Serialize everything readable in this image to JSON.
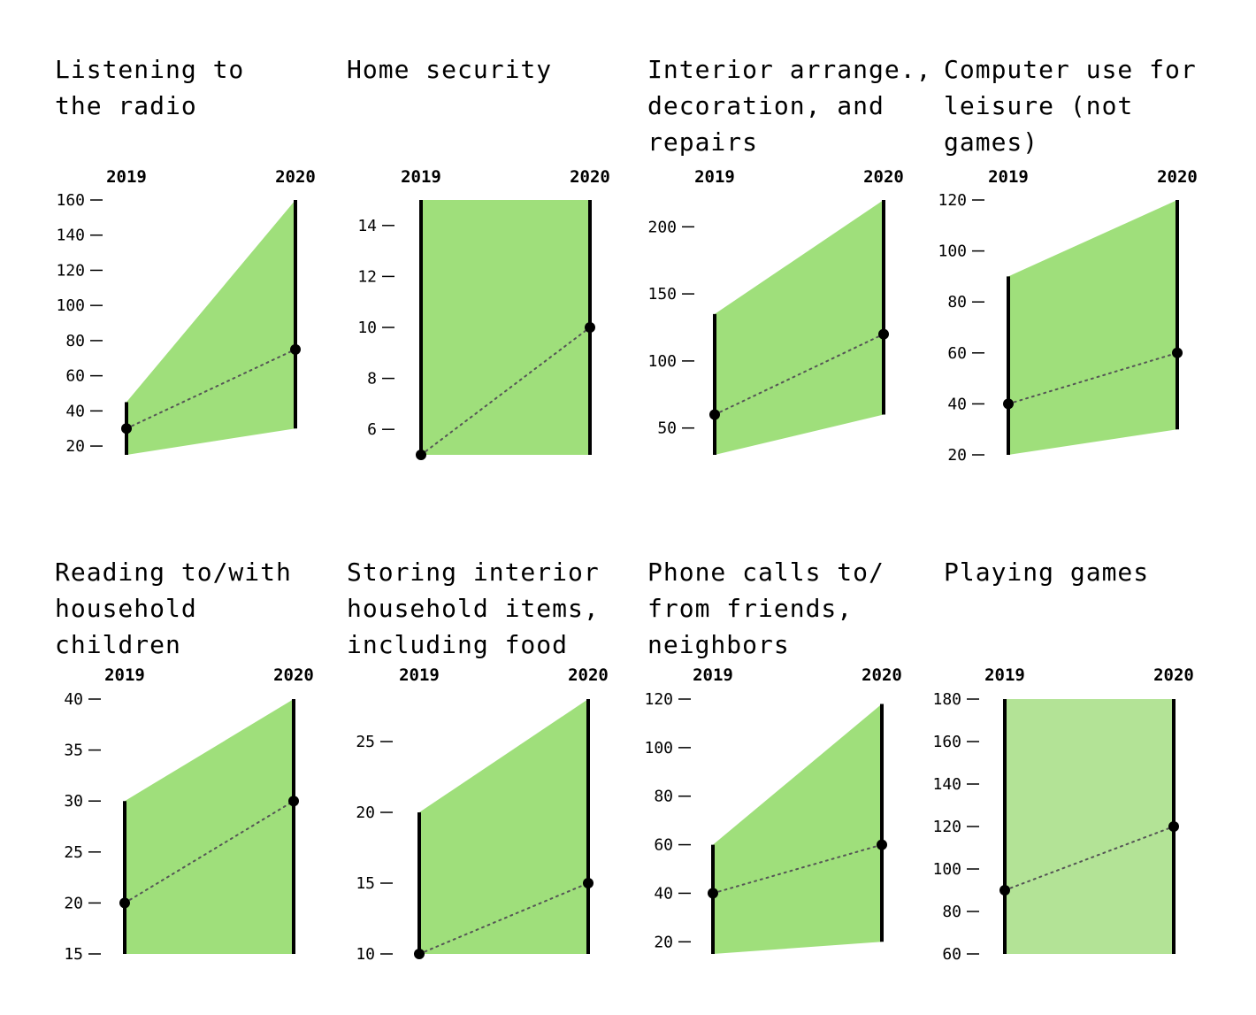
{
  "chart_data": [
    {
      "type": "range-slope",
      "title": "Listening to\nthe radio",
      "x": [
        "2019",
        "2020"
      ],
      "range_2019": [
        15,
        45
      ],
      "range_2020": [
        30,
        160
      ],
      "median": [
        30,
        75
      ],
      "yticks": [
        20,
        40,
        60,
        80,
        100,
        120,
        140,
        160
      ],
      "ylim": [
        15,
        160
      ],
      "fill": "#9fdf7b"
    },
    {
      "type": "range-slope",
      "title": "Home security",
      "x": [
        "2019",
        "2020"
      ],
      "range_2019": [
        5,
        15
      ],
      "range_2020": [
        5,
        15
      ],
      "median": [
        5,
        10
      ],
      "yticks": [
        6,
        8,
        10,
        12,
        14
      ],
      "ylim": [
        5,
        15
      ],
      "fill": "#9fdf7b"
    },
    {
      "type": "range-slope",
      "title": "Interior arrange.,\ndecoration, and\nrepairs",
      "x": [
        "2019",
        "2020"
      ],
      "range_2019": [
        30,
        135
      ],
      "range_2020": [
        60,
        220
      ],
      "median": [
        60,
        120
      ],
      "yticks": [
        50,
        100,
        150,
        200
      ],
      "ylim": [
        30,
        220
      ],
      "fill": "#9fdf7b"
    },
    {
      "type": "range-slope",
      "title": "Computer use for\nleisure (not\ngames)",
      "x": [
        "2019",
        "2020"
      ],
      "range_2019": [
        20,
        90
      ],
      "range_2020": [
        30,
        120
      ],
      "median": [
        40,
        60
      ],
      "yticks": [
        20,
        40,
        60,
        80,
        100,
        120
      ],
      "ylim": [
        20,
        120
      ],
      "fill": "#9fdf7b"
    },
    {
      "type": "range-slope",
      "title": "Reading to/with\nhousehold\nchildren",
      "x": [
        "2019",
        "2020"
      ],
      "range_2019": [
        15,
        30
      ],
      "range_2020": [
        15,
        40
      ],
      "median": [
        20,
        30
      ],
      "yticks": [
        15,
        20,
        25,
        30,
        35,
        40
      ],
      "ylim": [
        15,
        40
      ],
      "fill": "#9fdf7b"
    },
    {
      "type": "range-slope",
      "title": "Storing interior\nhousehold items,\nincluding food",
      "x": [
        "2019",
        "2020"
      ],
      "range_2019": [
        10,
        20
      ],
      "range_2020": [
        10,
        28
      ],
      "median": [
        10,
        15
      ],
      "yticks": [
        10,
        15,
        20,
        25
      ],
      "ylim": [
        10,
        28
      ],
      "fill": "#9fdf7b"
    },
    {
      "type": "range-slope",
      "title": "Phone calls to/\nfrom friends,\nneighbors",
      "x": [
        "2019",
        "2020"
      ],
      "range_2019": [
        15,
        60
      ],
      "range_2020": [
        20,
        118
      ],
      "median": [
        40,
        60
      ],
      "yticks": [
        20,
        40,
        60,
        80,
        100,
        120
      ],
      "ylim": [
        15,
        120
      ],
      "fill": "#9fdf7b"
    },
    {
      "type": "range-slope",
      "title": "Playing games",
      "x": [
        "2019",
        "2020"
      ],
      "range_2019": [
        60,
        180
      ],
      "range_2020": [
        60,
        180
      ],
      "median": [
        90,
        120
      ],
      "yticks": [
        60,
        80,
        100,
        120,
        140,
        160,
        180
      ],
      "ylim": [
        60,
        180
      ],
      "fill": "#b3e396"
    }
  ]
}
